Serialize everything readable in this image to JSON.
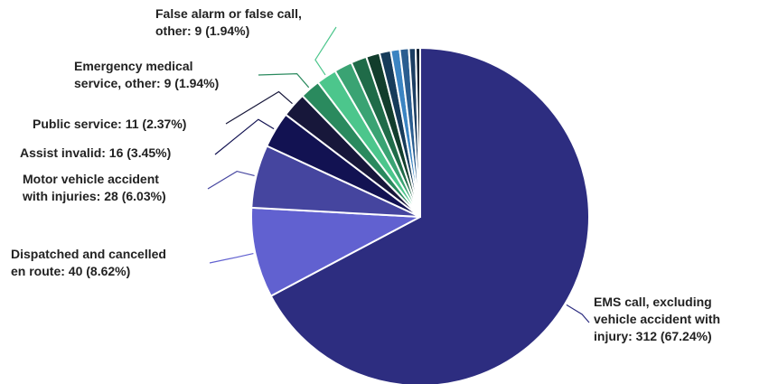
{
  "chart_data": {
    "type": "pie",
    "title": "",
    "start": "top, clockwise",
    "slices": [
      {
        "label_lines": [
          "EMS call, excluding",
          "vehicle accident with",
          "injury: 312 (67.24%)"
        ],
        "value": 312,
        "percent": 67.24,
        "color": "#2d2d80"
      },
      {
        "label_lines": [
          "Dispatched and cancelled",
          "en route: 40 (8.62%)"
        ],
        "value": 40,
        "percent": 8.62,
        "color": "#6161d0"
      },
      {
        "label_lines": [
          "Motor vehicle accident",
          "with injuries: 28 (6.03%)"
        ],
        "value": 28,
        "percent": 6.03,
        "color": "#45459f"
      },
      {
        "label_lines": [
          "Assist invalid: 16 (3.45%)"
        ],
        "value": 16,
        "percent": 3.45,
        "color": "#121252"
      },
      {
        "label_lines": [
          "Public service: 11 (2.37%)"
        ],
        "value": 11,
        "percent": 2.37,
        "color": "#17173a"
      },
      {
        "label_lines": [
          "Emergency medical",
          "service, other: 9 (1.94%)"
        ],
        "value": 9,
        "percent": 1.94,
        "color": "#2a8a5e"
      },
      {
        "label_lines": [
          "False alarm or false call,",
          "other: 9 (1.94%)"
        ],
        "value": 9,
        "percent": 1.94,
        "color": "#4cc68c"
      },
      {
        "label_lines": [],
        "value": 8,
        "color": "#3aa373"
      },
      {
        "label_lines": [],
        "value": 7,
        "color": "#1f6b48"
      },
      {
        "label_lines": [],
        "value": 6,
        "color": "#123d2c"
      },
      {
        "label_lines": [],
        "value": 5,
        "color": "#163b5a"
      },
      {
        "label_lines": [],
        "value": 4,
        "color": "#3b84c2"
      },
      {
        "label_lines": [],
        "value": 4,
        "color": "#2a5d90"
      },
      {
        "label_lines": [],
        "value": 3,
        "color": "#1c3e63"
      },
      {
        "label_lines": [],
        "value": 2,
        "color": "#0e1f30"
      }
    ]
  }
}
